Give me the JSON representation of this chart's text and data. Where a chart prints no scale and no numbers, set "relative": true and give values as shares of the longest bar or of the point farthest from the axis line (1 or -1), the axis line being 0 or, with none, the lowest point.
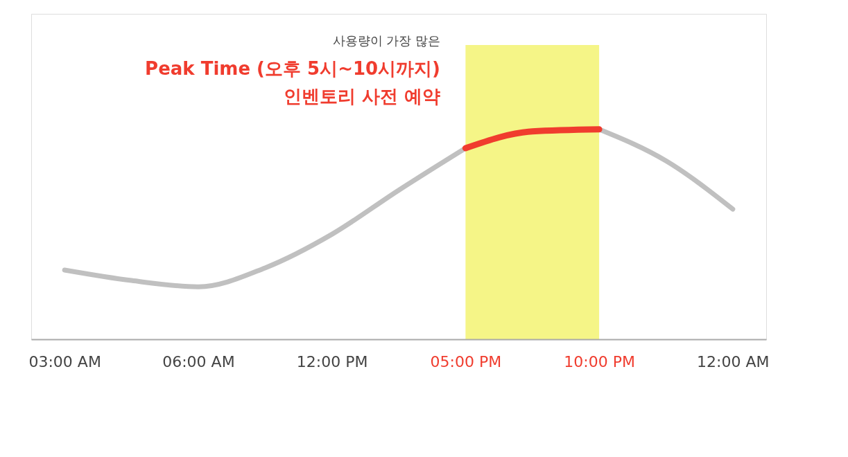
{
  "chart_data": {
    "type": "line",
    "relative": true,
    "categories": [
      "03:00 AM",
      null,
      "06:00 AM",
      null,
      "12:00 PM",
      null,
      "05:00 PM",
      null,
      "10:00 PM",
      null,
      "12:00 AM"
    ],
    "series": [
      {
        "color": "#c0c0c0",
        "values": [
          0.33,
          0.28,
          0.25,
          0.34,
          0.5,
          0.71,
          0.91,
          null,
          1.0,
          0.85,
          0.62
        ]
      },
      {
        "color": "#f03c2e",
        "values": [
          null,
          null,
          null,
          null,
          null,
          null,
          0.91,
          0.99,
          1.0,
          null,
          null
        ]
      }
    ],
    "bands": [
      {
        "axis": "x",
        "from": "05:00 PM",
        "to": "10:00 PM",
        "color": "#f4f47a"
      }
    ],
    "annotations": [
      "사용량이 가장 많은",
      "Peak Time (오후 5시~10시까지)",
      "인벤토리 사전 예약"
    ],
    "grid": false,
    "line_style": "solid"
  }
}
